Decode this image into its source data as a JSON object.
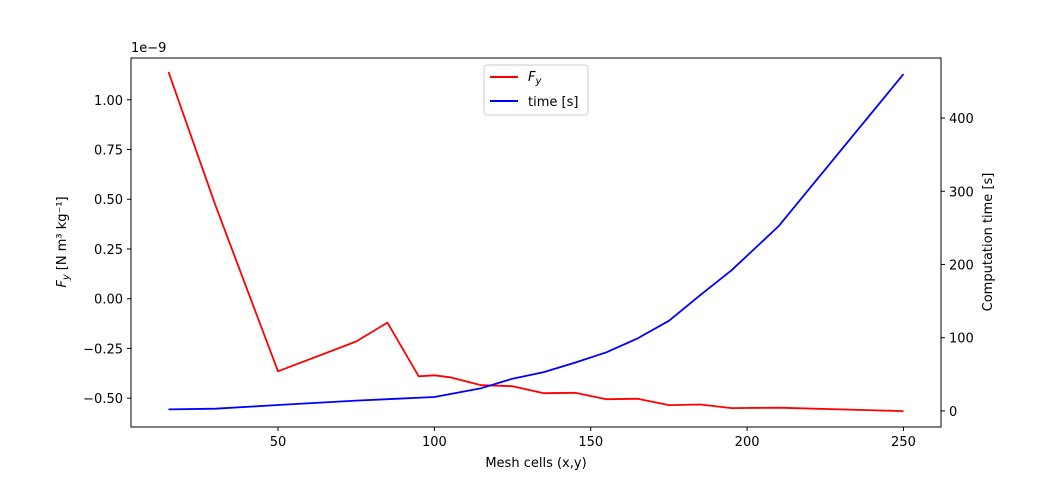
{
  "chart_data": {
    "type": "line",
    "xlabel": "Mesh cells (x,y)",
    "ylabel_left_prefix": "F",
    "ylabel_left_sub": "y",
    "ylabel_left_units": "[N m³ kg⁻¹]",
    "ylabel_right": "Computation time [s]",
    "offset_text": "1e−9",
    "xlim": [
      3,
      262
    ],
    "ylim_left": [
      -0.645,
      1.21
    ],
    "ylim_right": [
      -22,
      482
    ],
    "x_ticks": [
      50,
      100,
      150,
      200,
      250
    ],
    "y_ticks_left": [
      -0.5,
      -0.25,
      0.0,
      0.25,
      0.5,
      0.75,
      1.0
    ],
    "y_ticks_left_labels": [
      "−0.50",
      "−0.25",
      "0.00",
      "0.25",
      "0.50",
      "0.75",
      "1.00"
    ],
    "y_ticks_right": [
      0,
      100,
      200,
      300,
      400
    ],
    "legend": {
      "placement": "top-center",
      "entries": [
        "Fy",
        "time [s]"
      ]
    },
    "series": [
      {
        "name": "Fy",
        "axis": "left",
        "color": "#ff0000",
        "x": [
          15,
          30,
          50,
          75,
          85,
          95,
          100,
          105,
          115,
          125,
          135,
          145,
          155,
          165,
          175,
          185,
          195,
          210,
          250
        ],
        "values": [
          1.14,
          0.47,
          -0.365,
          -0.215,
          -0.12,
          -0.39,
          -0.385,
          -0.395,
          -0.435,
          -0.44,
          -0.475,
          -0.473,
          -0.505,
          -0.503,
          -0.535,
          -0.532,
          -0.55,
          -0.548,
          -0.565
        ]
      },
      {
        "name": "time [s]",
        "axis": "right",
        "color": "#0000ff",
        "x": [
          15,
          30,
          50,
          75,
          85,
          100,
          115,
          125,
          135,
          145,
          155,
          165,
          175,
          185,
          195,
          210,
          250
        ],
        "values": [
          2,
          3,
          8,
          14,
          16,
          19,
          31,
          44,
          53,
          66,
          80,
          99,
          123,
          158,
          192,
          252,
          460
        ]
      }
    ]
  }
}
